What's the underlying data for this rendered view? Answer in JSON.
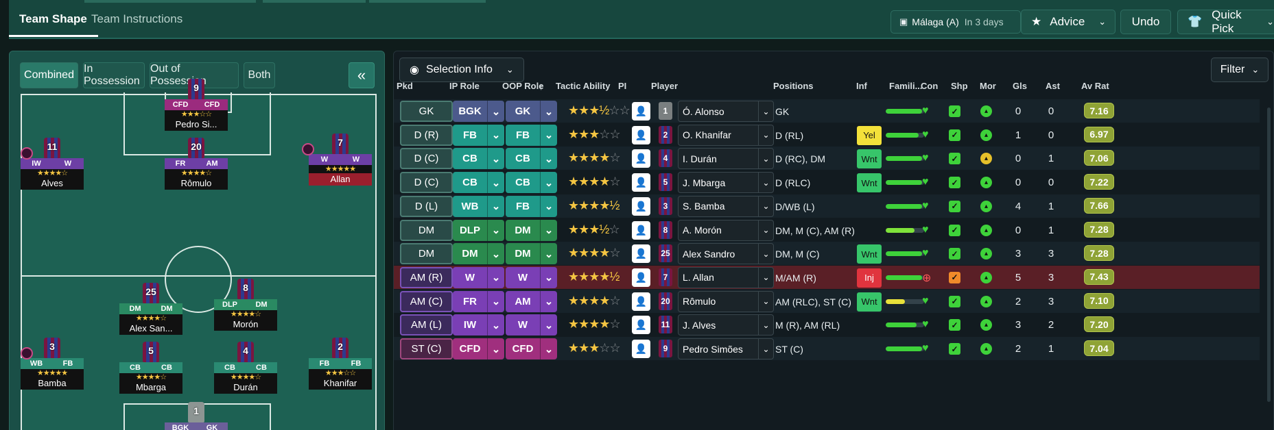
{
  "tabs": [
    {
      "label": "Team Shape"
    },
    {
      "label": "Team Instructions"
    }
  ],
  "fixture": {
    "opponent": "Málaga (A)",
    "when": "In 3 days"
  },
  "toolbar": {
    "advice": "Advice",
    "undo": "Undo",
    "quick_pick": "Quick Pick"
  },
  "view_toggle": [
    "Combined",
    "In Possession",
    "Out of Possession",
    "Both"
  ],
  "pitch_players": [
    {
      "no": "9",
      "r1": "CFD",
      "r2": "CFD",
      "stars": "★★★☆☆",
      "name": "Pedro Si...",
      "c1": "#9b2b7e",
      "c2": "#9b2b7e"
    },
    {
      "no": "11",
      "r1": "IW",
      "r2": "W",
      "stars": "★★★★☆",
      "name": "Alves",
      "c1": "#6d3fa5",
      "c2": "#6d3fa5"
    },
    {
      "no": "20",
      "r1": "FR",
      "r2": "AM",
      "stars": "★★★★☆",
      "name": "Rômulo",
      "c1": "#6d3fa5",
      "c2": "#6d3fa5"
    },
    {
      "no": "7",
      "r1": "W",
      "r2": "W",
      "stars": "★★★★★",
      "name": "Allan",
      "c1": "#6d3fa5",
      "c2": "#6d3fa5"
    },
    {
      "no": "25",
      "r1": "DM",
      "r2": "DM",
      "stars": "★★★★☆",
      "name": "Alex San...",
      "c1": "#2a8a62",
      "c2": "#2a8a62"
    },
    {
      "no": "8",
      "r1": "DLP",
      "r2": "DM",
      "stars": "★★★★☆",
      "name": "Morón",
      "c1": "#2a8a62",
      "c2": "#2a8a62"
    },
    {
      "no": "3",
      "r1": "WB",
      "r2": "FB",
      "stars": "★★★★★",
      "name": "Bamba",
      "c1": "#2a8a72",
      "c2": "#2a8a72"
    },
    {
      "no": "5",
      "r1": "CB",
      "r2": "CB",
      "stars": "★★★★☆",
      "name": "Mbarga",
      "c1": "#2a8a72",
      "c2": "#2a8a72"
    },
    {
      "no": "4",
      "r1": "CB",
      "r2": "CB",
      "stars": "★★★★☆",
      "name": "Durán",
      "c1": "#2a8a72",
      "c2": "#2a8a72"
    },
    {
      "no": "2",
      "r1": "FB",
      "r2": "FB",
      "stars": "★★★☆☆",
      "name": "Khanifar",
      "c1": "#2a8a72",
      "c2": "#2a8a72"
    },
    {
      "no": "1",
      "r1": "BGK",
      "r2": "GK",
      "stars": "",
      "name": "",
      "c1": "#6b5f9a",
      "c2": "#6b5f9a"
    }
  ],
  "selection_info": "Selection Info",
  "filter": "Filter",
  "columns": [
    "Pkd",
    "IP Role",
    "OOP Role",
    "Tactic Ability",
    "PI",
    "Player",
    "Positions",
    "Inf",
    "Famili...",
    "Con",
    "Shp",
    "Mor",
    "Gls",
    "Ast",
    "Av Rat"
  ],
  "rows": [
    {
      "pkd": "GK",
      "ip": "BGK",
      "oop": "GK",
      "stars": "★★★",
      "half": "½",
      "empty": "☆☆",
      "no": "1",
      "name": "Ó. Alonso",
      "pos": "GK",
      "inf": "",
      "fam": 0.95,
      "gls": "0",
      "ast": "0",
      "rat": "7.16"
    },
    {
      "pkd": "D (R)",
      "ip": "FB",
      "oop": "FB",
      "stars": "★★★",
      "half": "",
      "empty": "☆☆",
      "no": "2",
      "name": "O. Khanifar",
      "pos": "D (RL)",
      "inf": "Yel",
      "fam": 0.85,
      "gls": "1",
      "ast": "0",
      "rat": "6.97"
    },
    {
      "pkd": "D (C)",
      "ip": "CB",
      "oop": "CB",
      "stars": "★★★★",
      "half": "",
      "empty": "☆",
      "no": "4",
      "name": "I. Durán",
      "pos": "D (RC), DM",
      "inf": "Wnt",
      "fam": 0.95,
      "gls": "0",
      "ast": "1",
      "rat": "7.06"
    },
    {
      "pkd": "D (C)",
      "ip": "CB",
      "oop": "CB",
      "stars": "★★★★",
      "half": "",
      "empty": "☆",
      "no": "5",
      "name": "J. Mbarga",
      "pos": "D (RLC)",
      "inf": "Wnt",
      "fam": 0.95,
      "gls": "0",
      "ast": "0",
      "rat": "7.22"
    },
    {
      "pkd": "D (L)",
      "ip": "WB",
      "oop": "FB",
      "stars": "★★★★",
      "half": "½",
      "empty": "",
      "no": "3",
      "name": "S. Bamba",
      "pos": "D/WB (L)",
      "inf": "",
      "fam": 0.95,
      "gls": "4",
      "ast": "1",
      "rat": "7.66"
    },
    {
      "pkd": "DM",
      "ip": "DLP",
      "oop": "DM",
      "stars": "★★★",
      "half": "½",
      "empty": "☆",
      "no": "8",
      "name": "A. Morón",
      "pos": "DM, M (C), AM (R)",
      "inf": "",
      "fam": 0.75,
      "gls": "0",
      "ast": "1",
      "rat": "7.28"
    },
    {
      "pkd": "DM",
      "ip": "DM",
      "oop": "DM",
      "stars": "★★★★",
      "half": "",
      "empty": "☆",
      "no": "25",
      "name": "Alex Sandro",
      "pos": "DM, M (C)",
      "inf": "Wnt",
      "fam": 0.95,
      "gls": "3",
      "ast": "3",
      "rat": "7.28"
    },
    {
      "pkd": "AM (R)",
      "ip": "W",
      "oop": "W",
      "stars": "★★★★",
      "half": "½",
      "empty": "",
      "no": "7",
      "name": "L. Allan",
      "pos": "M/AM (R)",
      "inf": "Inj",
      "fam": 0.95,
      "gls": "5",
      "ast": "3",
      "rat": "7.43"
    },
    {
      "pkd": "AM (C)",
      "ip": "FR",
      "oop": "AM",
      "stars": "★★★★",
      "half": "",
      "empty": "☆",
      "no": "20",
      "name": "Rômulo",
      "pos": "AM (RLC), ST (C)",
      "inf": "Wnt",
      "fam": 0.5,
      "gls": "2",
      "ast": "3",
      "rat": "7.10"
    },
    {
      "pkd": "AM (L)",
      "ip": "IW",
      "oop": "W",
      "stars": "★★★★",
      "half": "",
      "empty": "☆",
      "no": "11",
      "name": "J. Alves",
      "pos": "M (R), AM (RL)",
      "inf": "",
      "fam": 0.8,
      "gls": "3",
      "ast": "2",
      "rat": "7.20"
    },
    {
      "pkd": "ST (C)",
      "ip": "CFD",
      "oop": "CFD",
      "stars": "★★★",
      "half": "",
      "empty": "☆☆",
      "no": "9",
      "name": "Pedro Simões",
      "pos": "ST (C)",
      "inf": "",
      "fam": 0.95,
      "gls": "2",
      "ast": "1",
      "rat": "7.04"
    }
  ],
  "colors": {
    "accent": "#2a7a69",
    "gk_role": "#4c5a8c",
    "def_role": "#1f9a8a",
    "mid_role": "#2a8a4e",
    "att_role": "#7a3fb5",
    "st_role": "#a02f7e"
  }
}
